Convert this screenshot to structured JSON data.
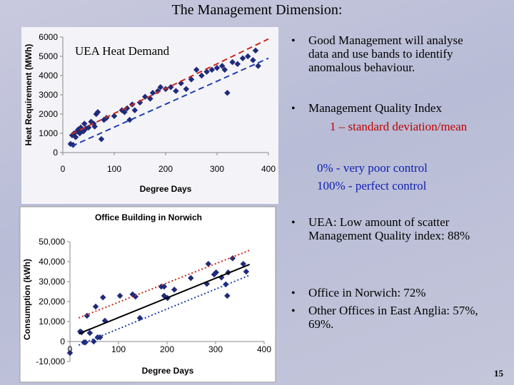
{
  "title": "The Management Dimension:",
  "bullets": [
    {
      "lines": [
        "Good Management will analyse",
        "data and use bands to identify",
        "anomalous behaviour."
      ]
    },
    {
      "lines": [
        "Management Quality Index"
      ],
      "formula": "1 – standard deviation/mean",
      "notes": [
        "0% -   very poor control",
        "100% - perfect control"
      ]
    },
    {
      "lines": [
        "UEA:  Low amount of scatter",
        "Management Quality index:    88%"
      ]
    },
    {
      "lines": [
        "Office in Norwich:  72%"
      ]
    },
    {
      "lines": [
        "Other Offices in East Anglia:  57%,",
        "69%."
      ]
    }
  ],
  "page_number": "15",
  "chart_data": [
    {
      "type": "scatter",
      "title": "UEA Heat Demand",
      "x_label": "Degree Days",
      "y_label": "Heat Requirement (MWh)",
      "xlim": [
        0,
        400
      ],
      "ylim": [
        0,
        6000
      ],
      "xticks": [
        0,
        100,
        200,
        300,
        400
      ],
      "yticks": [
        0,
        1000,
        2000,
        3000,
        4000,
        5000,
        6000
      ],
      "grid": false,
      "series": [
        {
          "color": "#1f2a7a",
          "mode": "markers",
          "x": [
            15,
            18,
            20,
            22,
            25,
            28,
            30,
            33,
            35,
            38,
            40,
            42,
            45,
            50,
            55,
            60,
            62,
            65,
            68,
            75,
            80,
            85,
            100,
            115,
            120,
            125,
            130,
            135,
            140,
            150,
            160,
            170,
            175,
            185,
            190,
            200,
            210,
            220,
            230,
            240,
            250,
            260,
            270,
            280,
            290,
            300,
            310,
            315,
            320,
            330,
            340,
            350,
            360,
            370,
            375,
            380
          ],
          "values": [
            450,
            900,
            400,
            1000,
            800,
            1100,
            1200,
            1000,
            1300,
            1150,
            1100,
            1500,
            1250,
            1300,
            1600,
            1500,
            1350,
            2000,
            2100,
            700,
            1700,
            1800,
            1900,
            2200,
            2100,
            2300,
            1700,
            2500,
            2200,
            2600,
            2900,
            2800,
            3100,
            3200,
            3400,
            3300,
            3400,
            3200,
            3600,
            3300,
            3800,
            4300,
            4000,
            4200,
            4300,
            4400,
            4500,
            4300,
            3100,
            4700,
            4600,
            4900,
            5000,
            4800,
            5300,
            4500
          ]
        },
        {
          "color": "#cc2a1a",
          "mode": "line",
          "dash": "dashed",
          "x": [
            17,
            400
          ],
          "values": [
            960,
            5900
          ]
        },
        {
          "color": "#1f3fb0",
          "mode": "line",
          "dash": "dashed",
          "x": [
            17,
            400
          ],
          "values": [
            330,
            4900
          ]
        }
      ]
    },
    {
      "type": "scatter",
      "title": "Office Building in Norwich",
      "x_label": "Degree Days",
      "y_label": "Consumption (kWh)",
      "xlim": [
        0,
        400
      ],
      "ylim": [
        -10000,
        50000
      ],
      "xticks": [
        0,
        100,
        200,
        300,
        400
      ],
      "yticks": [
        {
          "value": -10000,
          "label": "-10,000"
        },
        0,
        {
          "value": 10000,
          "label": "10,000"
        },
        {
          "value": 20000,
          "label": "20,000"
        },
        {
          "value": 30000,
          "label": "30,000"
        },
        {
          "value": 40000,
          "label": "40,000"
        },
        {
          "value": 50000,
          "label": "50,000"
        }
      ],
      "grid": false,
      "series": [
        {
          "color": "#1f2a7a",
          "mode": "markers",
          "x": [
            0,
            21,
            24,
            29,
            32,
            35,
            41,
            49,
            53,
            57,
            62,
            68,
            72,
            103,
            129,
            135,
            144,
            188,
            194,
            194,
            201,
            215,
            249,
            282,
            285,
            297,
            301,
            312,
            321,
            324,
            326,
            335,
            357,
            363
          ],
          "values": [
            -5700,
            5000,
            4600,
            -400,
            -400,
            12900,
            4300,
            0,
            17500,
            2100,
            2100,
            22100,
            10400,
            22900,
            23600,
            22500,
            11800,
            27500,
            27500,
            22900,
            21800,
            26000,
            31800,
            28900,
            38900,
            33600,
            34600,
            32100,
            28600,
            22900,
            34600,
            41700,
            38900,
            35000
          ]
        },
        {
          "color": "#cc2a1a",
          "mode": "line",
          "dash": "dotted",
          "x": [
            18,
            370
          ],
          "values": [
            11800,
            45700
          ]
        },
        {
          "color": "#000000",
          "mode": "line",
          "dash": "solid",
          "x": [
            18,
            370
          ],
          "values": [
            3900,
            38600
          ]
        },
        {
          "color": "#1f3fb0",
          "mode": "line",
          "dash": "dotted",
          "x": [
            18,
            370
          ],
          "values": [
            -1800,
            33200
          ]
        }
      ]
    }
  ]
}
